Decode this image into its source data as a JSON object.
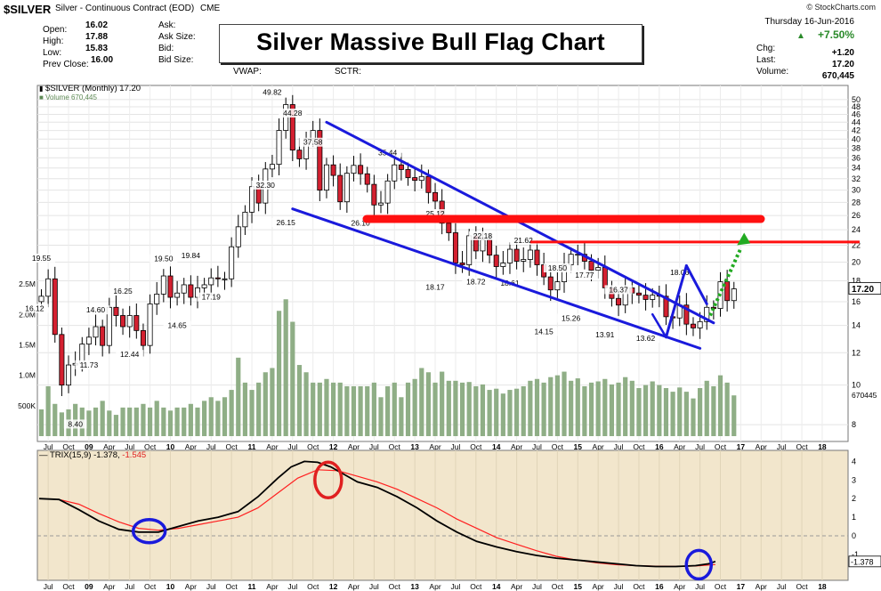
{
  "header": {
    "symbol": "$SILVER",
    "description": "Silver - Continuous Contract (EOD)",
    "exchange": "CME",
    "date": "Thursday  16-Jun-2016",
    "change_pct": "+7.50%",
    "stockcharts": "© StockCharts.com",
    "fields_left": [
      {
        "label": "Open:",
        "value": "16.02"
      },
      {
        "label": "High:",
        "value": "17.88"
      },
      {
        "label": "Low:",
        "value": "15.83"
      },
      {
        "label": "Prev Close:",
        "value": "16.00"
      }
    ],
    "fields_mid": [
      "Ask:",
      "Ask Size:",
      "Bid:",
      "Bid Size:"
    ],
    "fields_right_a": [
      "VWAP:"
    ],
    "fields_right_b": [
      "SCTR:"
    ],
    "stats": [
      {
        "label": "Chg:",
        "value": "+1.20"
      },
      {
        "label": "Last:",
        "value": "17.20"
      },
      {
        "label": "Volume:",
        "value": "670,445"
      }
    ]
  },
  "title": "Silver Massive Bull Flag Chart",
  "price_legend": "$SILVER (Monthly) 17.20",
  "volume_legend": "Volume 670,445",
  "trix_legend": "TRIX(15,9) -1.378, ",
  "trix_signal_legend": "-1.545",
  "colors": {
    "up": "#ffffff",
    "down": "#d42030",
    "candle_outline": "#000000",
    "volume": "#8fae86",
    "trend_lines": "#1a1adc",
    "resistance": "#ff1010",
    "forecast_arrow": "#22aa22",
    "trix_line": "#000000",
    "trix_signal": "#ff2020",
    "trix_bg": "#f2e6cc",
    "circle_blue": "#1a1adc",
    "circle_red": "#e02020"
  },
  "chart_data": [
    {
      "type": "candlestick",
      "title": "$SILVER (Monthly) 17.20",
      "interval": "monthly",
      "x_start": "Jun 2008",
      "x_end": "Jun 2016",
      "y_scale": "log",
      "ylim": [
        7.5,
        52
      ],
      "y_ticks": [
        8,
        10,
        12,
        14,
        16,
        18,
        20,
        22,
        24,
        26,
        28,
        30,
        32,
        34,
        36,
        38,
        40,
        42,
        44,
        46,
        48,
        50
      ],
      "last_price": "17.20",
      "x_tick_labels": [
        "Jul",
        "Oct",
        "09",
        "Apr",
        "Jul",
        "Oct",
        "10",
        "Apr",
        "Jul",
        "Oct",
        "11",
        "Apr",
        "Jul",
        "Oct",
        "12",
        "Apr",
        "Jul",
        "Oct",
        "13",
        "Apr",
        "Jul",
        "Oct",
        "14",
        "Apr",
        "Jul",
        "Oct",
        "15",
        "Apr",
        "Jul",
        "Oct",
        "16",
        "Apr",
        "Jul",
        "Oct",
        "17",
        "Apr",
        "Jul",
        "Oct",
        "18"
      ],
      "closes": [
        16.5,
        18.2,
        13.3,
        10.0,
        11.2,
        11.3,
        12.6,
        13.1,
        13.9,
        12.5,
        15.5,
        14.8,
        13.9,
        14.8,
        13.6,
        12.5,
        15.8,
        16.7,
        18.5,
        16.4,
        16.8,
        17.6,
        16.4,
        17.3,
        17.6,
        18.3,
        18.2,
        18.2,
        21.8,
        24.4,
        26.5,
        30.6,
        27.9,
        33.8,
        34.7,
        42.0,
        48.6,
        37.6,
        35.8,
        40.1,
        42.0,
        30.0,
        34.6,
        32.6,
        28.1,
        33.0,
        34.5,
        32.9,
        31.0,
        27.6,
        27.9,
        31.6,
        34.6,
        33.7,
        32.2,
        31.7,
        32.4,
        29.6,
        28.2,
        24.9,
        23.6,
        19.9,
        19.7,
        23.2,
        21.3,
        22.7,
        20.8,
        19.5,
        19.9,
        21.5,
        20.1,
        20.3,
        21.4,
        19.7,
        18.4,
        17.1,
        17.9,
        19.7,
        20.9,
        20.9,
        20.1,
        19.1,
        19.4,
        17.3,
        16.3,
        15.7,
        17.3,
        16.8,
        16.6,
        16.2,
        16.6,
        16.5,
        14.7,
        14.6,
        15.7,
        14.1,
        13.8,
        14.3,
        15.5,
        15.4,
        17.9,
        16.1,
        17.2
      ],
      "labels": [
        "49.82",
        "44.28",
        "37.58",
        "35.44",
        "32.30",
        "26.15",
        "26.10",
        "25.12",
        "22.18",
        "21.62",
        "18.17",
        "18.72",
        "18.61",
        "18.50",
        "17.77",
        "16.37",
        "15.26",
        "14.15",
        "13.91",
        "13.62",
        "18.06",
        "19.55",
        "16.12",
        "14.60",
        "16.25",
        "19.50",
        "19.84",
        "17.19",
        "14.65",
        "12.44",
        "11.73",
        "8.40"
      ],
      "annotations": [
        {
          "type": "resistance",
          "value": 25.5
        },
        {
          "type": "resistance",
          "value": 22.4
        }
      ]
    },
    {
      "type": "bar",
      "title": "Volume",
      "ylim": [
        0,
        3000000
      ],
      "y_tick_labels": [
        "500K",
        "1.0M",
        "1.5M",
        "2.0M",
        "2.5M"
      ],
      "last_label": "670445",
      "values": [
        440000,
        820000,
        530000,
        390000,
        440000,
        530000,
        470000,
        420000,
        470000,
        580000,
        420000,
        350000,
        470000,
        470000,
        470000,
        530000,
        470000,
        580000,
        470000,
        420000,
        470000,
        470000,
        530000,
        470000,
        580000,
        640000,
        580000,
        640000,
        760000,
        1290000,
        880000,
        760000,
        880000,
        1050000,
        1120000,
        2060000,
        2250000,
        1880000,
        1170000,
        1050000,
        880000,
        880000,
        940000,
        880000,
        880000,
        820000,
        820000,
        820000,
        820000,
        880000,
        640000,
        820000,
        880000,
        640000,
        880000,
        940000,
        1120000,
        1050000,
        880000,
        1060000,
        910000,
        910000,
        880000,
        890000,
        820000,
        850000,
        760000,
        780000,
        700000,
        760000,
        780000,
        820000,
        910000,
        940000,
        880000,
        970000,
        1000000,
        1060000,
        910000,
        950000,
        820000,
        880000,
        900000,
        940000,
        850000,
        880000,
        970000,
        910000,
        790000,
        840000,
        900000,
        840000,
        790000,
        730000,
        800000,
        730000,
        620000,
        790000,
        910000,
        820000,
        1000000,
        880000,
        670000
      ]
    },
    {
      "type": "line",
      "title": "TRIX(15,9)",
      "ylim": [
        -2.2,
        4.4
      ],
      "y_ticks": [
        -1,
        0,
        1,
        2,
        3,
        4
      ],
      "last_label": "-1.378",
      "series": [
        {
          "name": "TRIX(15,9)",
          "points": [
            [
              0,
              2.0
            ],
            [
              3,
              1.95
            ],
            [
              6,
              1.4
            ],
            [
              9,
              0.8
            ],
            [
              12,
              0.35
            ],
            [
              15,
              0.2
            ],
            [
              18,
              0.2
            ],
            [
              21,
              0.5
            ],
            [
              24,
              0.8
            ],
            [
              27,
              1.0
            ],
            [
              30,
              1.3
            ],
            [
              33,
              2.1
            ],
            [
              36,
              3.1
            ],
            [
              38,
              3.7
            ],
            [
              40,
              4.0
            ],
            [
              42,
              3.95
            ],
            [
              44,
              3.7
            ],
            [
              46,
              3.3
            ],
            [
              48,
              2.9
            ],
            [
              51,
              2.6
            ],
            [
              54,
              2.1
            ],
            [
              57,
              1.5
            ],
            [
              60,
              0.8
            ],
            [
              63,
              0.2
            ],
            [
              66,
              -0.3
            ],
            [
              69,
              -0.6
            ],
            [
              72,
              -0.85
            ],
            [
              75,
              -1.05
            ],
            [
              78,
              -1.2
            ],
            [
              81,
              -1.3
            ],
            [
              84,
              -1.4
            ],
            [
              87,
              -1.5
            ],
            [
              90,
              -1.6
            ],
            [
              93,
              -1.65
            ],
            [
              96,
              -1.65
            ],
            [
              99,
              -1.6
            ],
            [
              101,
              -1.5
            ],
            [
              102,
              -1.378
            ]
          ]
        },
        {
          "name": "-1.545",
          "points": [
            [
              0,
              2.0
            ],
            [
              3,
              1.95
            ],
            [
              6,
              1.7
            ],
            [
              9,
              1.2
            ],
            [
              12,
              0.75
            ],
            [
              15,
              0.4
            ],
            [
              18,
              0.3
            ],
            [
              21,
              0.4
            ],
            [
              24,
              0.6
            ],
            [
              27,
              0.8
            ],
            [
              30,
              1.0
            ],
            [
              33,
              1.5
            ],
            [
              36,
              2.3
            ],
            [
              39,
              3.1
            ],
            [
              42,
              3.55
            ],
            [
              45,
              3.5
            ],
            [
              48,
              3.2
            ],
            [
              51,
              2.9
            ],
            [
              54,
              2.5
            ],
            [
              57,
              2.0
            ],
            [
              60,
              1.5
            ],
            [
              63,
              0.9
            ],
            [
              66,
              0.4
            ],
            [
              69,
              -0.1
            ],
            [
              72,
              -0.45
            ],
            [
              75,
              -0.8
            ],
            [
              78,
              -1.1
            ],
            [
              81,
              -1.3
            ],
            [
              84,
              -1.45
            ],
            [
              87,
              -1.55
            ],
            [
              90,
              -1.6
            ],
            [
              93,
              -1.63
            ],
            [
              96,
              -1.64
            ],
            [
              99,
              -1.62
            ],
            [
              102,
              -1.545
            ]
          ]
        }
      ]
    }
  ]
}
